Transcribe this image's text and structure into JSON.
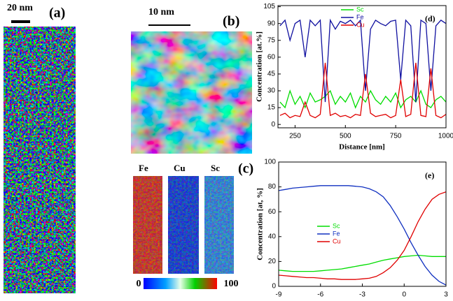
{
  "panels": {
    "a": {
      "label": "(a)",
      "scale": "20 nm"
    },
    "b": {
      "label": "(b)",
      "scale": "10 nm"
    },
    "c": {
      "label": "(c)",
      "elements": [
        "Fe",
        "Cu",
        "Sc"
      ],
      "colorbar_min": 0,
      "colorbar_max": 100
    }
  },
  "chart_data": [
    {
      "type": "line",
      "title": "(d)",
      "xlabel": "Distance [nm]",
      "ylabel": "Concentration [at.%]",
      "x": [
        175,
        200,
        225,
        250,
        275,
        300,
        325,
        350,
        375,
        400,
        425,
        450,
        475,
        500,
        525,
        550,
        575,
        600,
        625,
        650,
        675,
        700,
        725,
        750,
        775,
        800,
        825,
        850,
        875,
        900,
        925,
        950,
        975,
        1000
      ],
      "series": [
        {
          "name": "Sc",
          "color": "#00dd00",
          "values": [
            20,
            15,
            30,
            18,
            25,
            15,
            28,
            20,
            22,
            25,
            30,
            18,
            25,
            20,
            28,
            15,
            25,
            20,
            30,
            22,
            18,
            25,
            20,
            28,
            15,
            22,
            25,
            20,
            30,
            18,
            15,
            22,
            25,
            20
          ]
        },
        {
          "name": "Fe",
          "color": "#1010a0",
          "values": [
            88,
            93,
            75,
            90,
            93,
            60,
            93,
            88,
            93,
            20,
            93,
            85,
            92,
            90,
            93,
            88,
            93,
            30,
            85,
            93,
            90,
            88,
            92,
            93,
            40,
            93,
            88,
            20,
            93,
            90,
            30,
            88,
            93,
            90
          ]
        },
        {
          "name": "Cu",
          "color": "#e00000",
          "values": [
            8,
            10,
            6,
            8,
            7,
            20,
            8,
            6,
            9,
            55,
            8,
            10,
            7,
            8,
            6,
            9,
            8,
            45,
            10,
            7,
            8,
            9,
            6,
            8,
            40,
            7,
            9,
            55,
            8,
            7,
            50,
            8,
            6,
            9
          ]
        }
      ],
      "xlim": [
        165,
        1000
      ],
      "xticks": [
        250,
        500,
        750,
        1000
      ],
      "ylim": [
        -3,
        106
      ],
      "yticks": [
        0,
        15,
        30,
        45,
        60,
        75,
        90,
        105
      ],
      "legend": "upper center"
    },
    {
      "type": "line",
      "title": "(e)",
      "xlabel": "Distance [nm]",
      "ylabel": "Concentration [at, %]",
      "x": [
        -9,
        -8.5,
        -8,
        -7.5,
        -7,
        -6.5,
        -6,
        -5.5,
        -5,
        -4.5,
        -4,
        -3.5,
        -3,
        -2.5,
        -2,
        -1.5,
        -1,
        -0.5,
        0,
        0.5,
        1,
        1.5,
        2,
        2.5,
        3
      ],
      "series": [
        {
          "name": "Sc",
          "color": "#00dd00",
          "values": [
            13,
            12.5,
            12,
            12,
            12,
            12,
            12.5,
            13,
            13.5,
            14,
            15,
            16,
            17,
            18,
            19.5,
            21,
            22,
            23,
            24,
            24.5,
            25,
            24.5,
            24,
            24,
            24
          ]
        },
        {
          "name": "Fe",
          "color": "#1030c0",
          "values": [
            77,
            78,
            79,
            79.5,
            80,
            80.5,
            81,
            81,
            81,
            81,
            81,
            80.5,
            80,
            78.5,
            76,
            72,
            65,
            56,
            46,
            35,
            25,
            16,
            9,
            4,
            1
          ]
        },
        {
          "name": "Cu",
          "color": "#e00000",
          "values": [
            9,
            8.5,
            8,
            7.5,
            7,
            7,
            6.5,
            6,
            6,
            5.5,
            5.5,
            5.5,
            6,
            6.5,
            8,
            11,
            15,
            21,
            29,
            40,
            52,
            62,
            70,
            74,
            76
          ]
        }
      ],
      "xlim": [
        -9,
        3
      ],
      "xticks": [
        -9,
        -6,
        -3,
        0,
        3
      ],
      "ylim": [
        0,
        100
      ],
      "yticks": [
        0,
        20,
        40,
        60,
        80,
        100
      ],
      "legend": "center left"
    }
  ]
}
